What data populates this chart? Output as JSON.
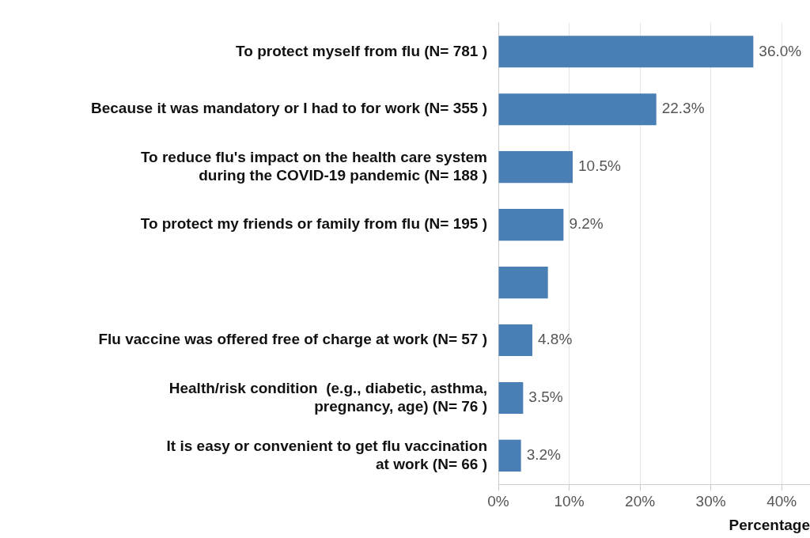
{
  "chart_data": {
    "type": "bar",
    "orientation": "horizontal",
    "xlabel": "Percentage",
    "categories": [
      "To protect myself from flu (N= 781 )",
      "Because it was mandatory or I had to for work (N= 355 )",
      "To reduce flu's impact on the health care system\nduring the COVID-19 pandemic (N= 188 )",
      "To protect my friends or family from flu (N= 195 )",
      null,
      "Flu vaccine was offered free of charge at work (N= 57 )",
      "Health/risk condition  (e.g., diabetic, asthma,\npregnancy, age) (N= 76 )",
      "It is easy or convenient to get flu vaccination\nat work (N= 66 )"
    ],
    "values": [
      36.0,
      22.3,
      10.5,
      9.2,
      7.0,
      4.8,
      3.5,
      3.2
    ],
    "value_labels": [
      "36.0%",
      "22.3%",
      "10.5%",
      "9.2%",
      null,
      "4.8%",
      "3.5%",
      "3.2%"
    ],
    "color": "#4a7fb5",
    "xlim": [
      0,
      44
    ],
    "xticks": [
      {
        "value": 0,
        "label": "0%"
      },
      {
        "value": 10,
        "label": "10%"
      },
      {
        "value": 20,
        "label": "20%"
      },
      {
        "value": 30,
        "label": "30%"
      },
      {
        "value": 40,
        "label": "40%"
      }
    ],
    "grid": "x",
    "legend": false
  }
}
